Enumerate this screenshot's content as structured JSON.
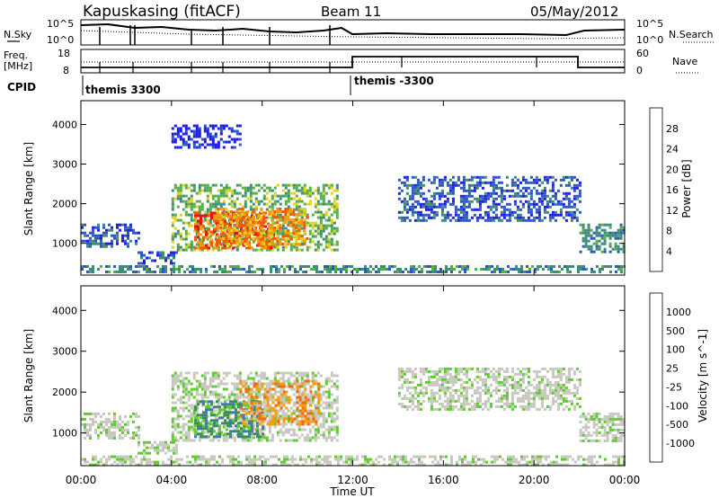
{
  "header": {
    "station": "Kapuskasing (fitACF)",
    "beam": "Beam 11",
    "date": "05/May/2012"
  },
  "noise_panel": {
    "left_label": "N.Sky",
    "right_label": "N.Search",
    "left_ticks": [
      "10^5",
      "10^0"
    ],
    "right_ticks": [
      "10^5",
      "10^0"
    ]
  },
  "freq_panel": {
    "left_label_1": "Freq.",
    "left_label_2": "[MHz]",
    "right_label": "Nave",
    "left_ticks": [
      "18",
      "8"
    ],
    "right_ticks": [
      "60",
      "0"
    ]
  },
  "cpid": {
    "label": "CPID",
    "segments": [
      "themis 3300",
      "themis -3300"
    ]
  },
  "x_axis": {
    "ticks": [
      "00:00",
      "04:00",
      "08:00",
      "12:00",
      "16:00",
      "20:00",
      "00:00"
    ],
    "label": "Time UT"
  },
  "chart_data": [
    {
      "type": "heatmap",
      "quantity": "Power",
      "ylabel": "Slant Range [km]",
      "yticks": [
        1000,
        2000,
        3000,
        4000
      ],
      "ylim": [
        200,
        4600
      ],
      "xlim_hours": [
        0,
        24
      ],
      "colorbar_label": "Power [dB]",
      "colorbar_ticks": [
        4,
        8,
        12,
        16,
        20,
        24,
        28
      ],
      "colors": [
        "#1e1ee6",
        "#2e57c4",
        "#3e8c7a",
        "#55b04a",
        "#e6d21e",
        "#f29a10",
        "#ee5a10",
        "#e01515"
      ],
      "echo_regions": [
        {
          "t_start": 0.0,
          "t_end": 2.6,
          "r_low": 900,
          "r_high": 1500,
          "level": 1
        },
        {
          "t_start": 2.5,
          "t_end": 4.2,
          "r_low": 500,
          "r_high": 800,
          "level": 1
        },
        {
          "t_start": 4.0,
          "t_end": 11.3,
          "r_low": 800,
          "r_high": 2500,
          "level": 3
        },
        {
          "t_start": 5.0,
          "t_end": 8.5,
          "r_low": 900,
          "r_high": 1800,
          "level": 6
        },
        {
          "t_start": 6.0,
          "t_end": 10.0,
          "r_low": 1000,
          "r_high": 1900,
          "level": 5
        },
        {
          "t_start": 14.0,
          "t_end": 22.0,
          "r_low": 1600,
          "r_high": 2700,
          "level": 1
        },
        {
          "t_start": 22.0,
          "t_end": 24.0,
          "r_low": 800,
          "r_high": 1500,
          "level": 2
        },
        {
          "t_start": 0.0,
          "t_end": 24.0,
          "r_low": 250,
          "r_high": 450,
          "level": 2
        },
        {
          "t_start": 4.0,
          "t_end": 7.0,
          "r_low": 3400,
          "r_high": 4000,
          "level": 0
        }
      ]
    },
    {
      "type": "heatmap",
      "quantity": "Velocity",
      "ylabel": "Slant Range [km]",
      "yticks": [
        1000,
        2000,
        3000,
        4000
      ],
      "ylim": [
        200,
        4600
      ],
      "xlim_hours": [
        0,
        24
      ],
      "colorbar_label": "Velocity [m s^-1]",
      "colorbar_ticks": [
        1000,
        500,
        100,
        25,
        -25,
        -100,
        -500,
        -1000
      ],
      "colors": [
        "#1e2ee6",
        "#3e78b8",
        "#3c8c5a",
        "#5ccc2e",
        "#c8c8c0",
        "#c8c8c0",
        "#f2a010",
        "#f06a10",
        "#e01515"
      ],
      "echo_regions": [
        {
          "t_start": 0.0,
          "t_end": 2.6,
          "r_low": 900,
          "r_high": 1500,
          "level": 4
        },
        {
          "t_start": 2.5,
          "t_end": 4.2,
          "r_low": 500,
          "r_high": 800,
          "level": 4
        },
        {
          "t_start": 4.0,
          "t_end": 11.3,
          "r_low": 800,
          "r_high": 2500,
          "level": 4
        },
        {
          "t_start": 5.0,
          "t_end": 8.0,
          "r_low": 900,
          "r_high": 1800,
          "level": 2
        },
        {
          "t_start": 7.0,
          "t_end": 10.5,
          "r_low": 1200,
          "r_high": 2300,
          "level": 6
        },
        {
          "t_start": 14.0,
          "t_end": 22.0,
          "r_low": 1600,
          "r_high": 2600,
          "level": 4
        },
        {
          "t_start": 22.0,
          "t_end": 24.0,
          "r_low": 800,
          "r_high": 1500,
          "level": 4
        },
        {
          "t_start": 0.0,
          "t_end": 24.0,
          "r_low": 250,
          "r_high": 450,
          "level": 4
        }
      ]
    }
  ]
}
